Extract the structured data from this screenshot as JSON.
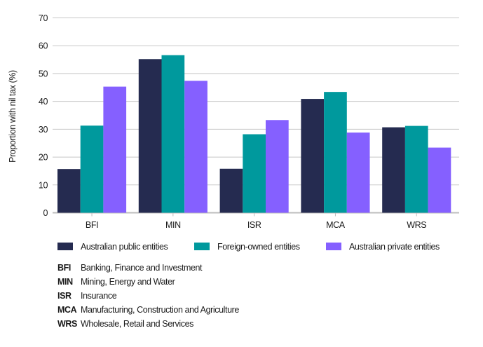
{
  "chart_data": {
    "type": "bar",
    "title": "",
    "xlabel": "",
    "ylabel": "Proportion with nil tax (%)",
    "ylim": [
      0,
      70
    ],
    "yticks": [
      0,
      10,
      20,
      30,
      40,
      50,
      60,
      70
    ],
    "grid": true,
    "legend_position": "bottom",
    "categories": [
      "BFI",
      "MIN",
      "ISR",
      "MCA",
      "WRS"
    ],
    "series": [
      {
        "name": "Australian public entities",
        "color": "#252B50",
        "values": [
          15.7,
          55.2,
          15.8,
          40.9,
          30.7
        ]
      },
      {
        "name": "Foreign-owned entities",
        "color": "#00999D",
        "values": [
          31.3,
          56.6,
          28.2,
          43.4,
          31.2
        ]
      },
      {
        "name": "Australian private entities",
        "color": "#8560FF",
        "values": [
          45.3,
          47.4,
          33.3,
          28.8,
          23.4
        ]
      }
    ],
    "abbreviations": [
      {
        "code": "BFI",
        "label": "Banking, Finance and Investment"
      },
      {
        "code": "MIN",
        "label": "Mining, Energy and Water"
      },
      {
        "code": "ISR",
        "label": "Insurance"
      },
      {
        "code": "MCA",
        "label": "Manufacturing, Construction and Agriculture"
      },
      {
        "code": "WRS",
        "label": "Wholesale, Retail and Services"
      }
    ]
  }
}
